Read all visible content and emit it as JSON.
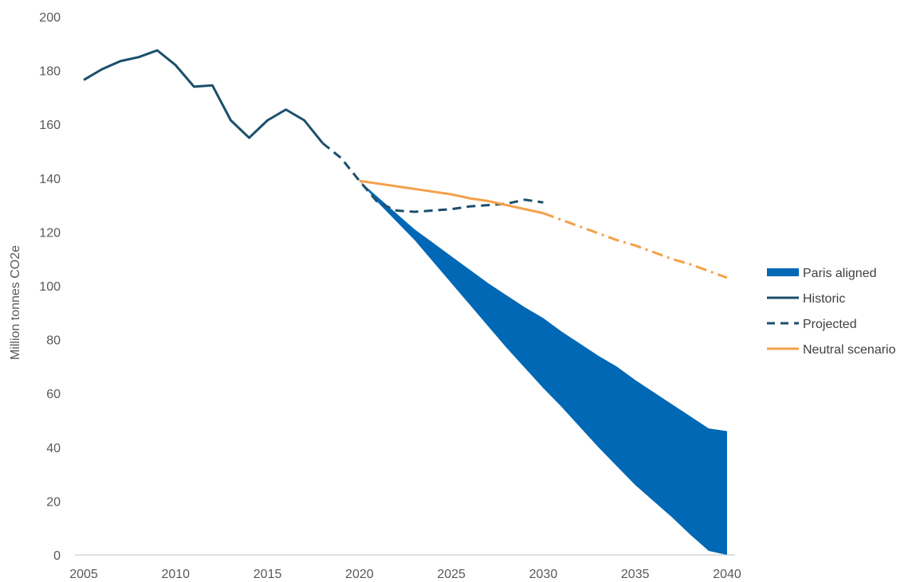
{
  "chart_data": {
    "type": "line",
    "ylabel": "Million tonnes CO2e",
    "xlim": [
      2005,
      2040
    ],
    "ylim": [
      0,
      200
    ],
    "x_ticks": [
      "2005",
      "2010",
      "2015",
      "2020",
      "2025",
      "2030",
      "2035",
      "2040"
    ],
    "y_ticks": [
      "0",
      "20",
      "40",
      "60",
      "80",
      "100",
      "120",
      "140",
      "160",
      "180",
      "200"
    ],
    "grid": false,
    "legend_position": "right",
    "series": [
      {
        "name": "Paris aligned",
        "kind": "band",
        "color": "#0068B4",
        "x": [
          2020,
          2021,
          2022,
          2023,
          2024,
          2025,
          2026,
          2027,
          2028,
          2029,
          2030,
          2031,
          2032,
          2033,
          2034,
          2035,
          2036,
          2037,
          2038,
          2039,
          2040
        ],
        "upper": [
          139,
          133,
          127,
          121,
          116,
          111,
          106,
          101,
          96.5,
          92,
          88,
          83,
          78.5,
          74,
          70,
          65,
          60.5,
          56,
          51.5,
          47,
          46
        ],
        "lower": [
          139,
          131,
          124,
          117,
          109,
          101,
          93,
          85,
          77,
          69.5,
          62,
          55,
          47.5,
          40,
          33,
          26,
          20,
          14,
          7.5,
          1.5,
          0
        ]
      },
      {
        "name": "Historic",
        "kind": "solid",
        "color": "#1B4F6B",
        "x": [
          2005,
          2006,
          2007,
          2008,
          2009,
          2010,
          2011,
          2012,
          2013,
          2014,
          2015,
          2016,
          2017,
          2018
        ],
        "y": [
          176.5,
          180.5,
          183.5,
          185,
          187.5,
          182,
          174,
          174.5,
          161.5,
          155,
          161.5,
          165.5,
          161.5,
          153
        ]
      },
      {
        "name": "Projected",
        "kind": "dashed",
        "color": "#1B4F6B",
        "x": [
          2018,
          2019,
          2020,
          2021,
          2022,
          2023,
          2024,
          2025,
          2026,
          2027,
          2028,
          2029,
          2030
        ],
        "y": [
          153,
          147.5,
          139,
          131,
          128,
          127.5,
          128,
          128.5,
          129.5,
          130,
          130.5,
          132,
          131
        ]
      },
      {
        "name": "Neutral scenario",
        "kind": "solid",
        "color": "#F5A04A",
        "x": [
          2020,
          2021,
          2022,
          2023,
          2024,
          2025,
          2026,
          2027,
          2028,
          2029,
          2030
        ],
        "y": [
          139,
          138,
          137,
          136,
          135,
          134,
          132.5,
          131.5,
          130,
          128.5,
          127
        ]
      },
      {
        "name": "Neutral scenario (extension)",
        "kind": "dashdot",
        "legend": false,
        "color": "#F5A04A",
        "x": [
          2030,
          2031,
          2032,
          2033,
          2034,
          2035,
          2036,
          2037,
          2038,
          2039,
          2040
        ],
        "y": [
          127,
          124.5,
          122,
          119.5,
          117,
          115,
          112.5,
          110,
          108,
          105.5,
          103
        ]
      }
    ]
  }
}
